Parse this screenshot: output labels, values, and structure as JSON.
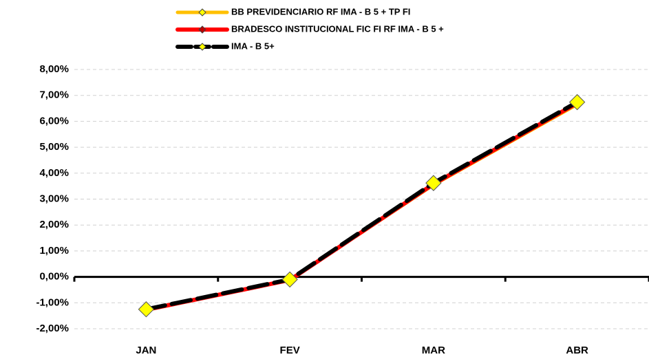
{
  "chart_data": {
    "type": "line",
    "categories": [
      "JAN",
      "FEV",
      "MAR",
      "ABR"
    ],
    "series": [
      {
        "name": "BB PREVIDENCIARIO RF IMA - B 5 + TP FI",
        "color": "#ffc000",
        "marker_color": "#ffff00",
        "values": [
          -1.28,
          -0.12,
          3.55,
          6.65
        ]
      },
      {
        "name": "BRADESCO INSTITUCIONAL FIC FI RF IMA - B 5 +",
        "color": "#ff0000",
        "marker_color": "#c00000",
        "values": [
          -1.27,
          -0.12,
          3.58,
          6.7
        ]
      },
      {
        "name": "IMA - B 5+",
        "color": "#000000",
        "marker_color": "#ffff00",
        "values": [
          -1.25,
          -0.1,
          3.62,
          6.74
        ]
      }
    ],
    "ylim": [
      -2,
      8
    ],
    "yticks": [
      {
        "value": -2,
        "label": "-2,00%"
      },
      {
        "value": -1,
        "label": "-1,00%"
      },
      {
        "value": 0,
        "label": "0,00%"
      },
      {
        "value": 1,
        "label": "1,00%"
      },
      {
        "value": 2,
        "label": "2,00%"
      },
      {
        "value": 3,
        "label": "3,00%"
      },
      {
        "value": 4,
        "label": "4,00%"
      },
      {
        "value": 5,
        "label": "5,00%"
      },
      {
        "value": 6,
        "label": "6,00%"
      },
      {
        "value": 7,
        "label": "7,00%"
      },
      {
        "value": 8,
        "label": "8,00%"
      }
    ],
    "grid": true
  }
}
